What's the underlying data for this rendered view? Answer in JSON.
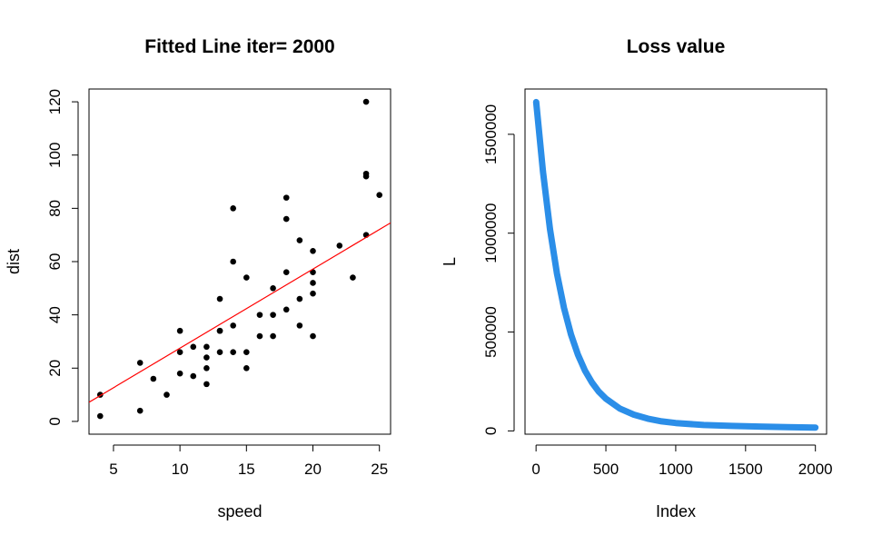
{
  "chart_data": [
    {
      "type": "scatter",
      "title": "Fitted Line iter= 2000",
      "xlabel": "speed",
      "ylabel": "dist",
      "xlim": [
        3.16,
        25.84
      ],
      "ylim": [
        -4.8,
        124.8
      ],
      "xticks": [
        5,
        10,
        15,
        20,
        25
      ],
      "yticks": [
        0,
        20,
        40,
        60,
        80,
        100,
        120
      ],
      "grid": false,
      "points": [
        {
          "x": 4,
          "y": 2
        },
        {
          "x": 4,
          "y": 10
        },
        {
          "x": 7,
          "y": 4
        },
        {
          "x": 7,
          "y": 22
        },
        {
          "x": 8,
          "y": 16
        },
        {
          "x": 9,
          "y": 10
        },
        {
          "x": 10,
          "y": 18
        },
        {
          "x": 10,
          "y": 26
        },
        {
          "x": 10,
          "y": 34
        },
        {
          "x": 11,
          "y": 17
        },
        {
          "x": 11,
          "y": 28
        },
        {
          "x": 12,
          "y": 14
        },
        {
          "x": 12,
          "y": 20
        },
        {
          "x": 12,
          "y": 24
        },
        {
          "x": 12,
          "y": 28
        },
        {
          "x": 13,
          "y": 26
        },
        {
          "x": 13,
          "y": 34
        },
        {
          "x": 13,
          "y": 34
        },
        {
          "x": 13,
          "y": 46
        },
        {
          "x": 14,
          "y": 26
        },
        {
          "x": 14,
          "y": 36
        },
        {
          "x": 14,
          "y": 60
        },
        {
          "x": 14,
          "y": 80
        },
        {
          "x": 15,
          "y": 20
        },
        {
          "x": 15,
          "y": 26
        },
        {
          "x": 15,
          "y": 54
        },
        {
          "x": 16,
          "y": 32
        },
        {
          "x": 16,
          "y": 40
        },
        {
          "x": 17,
          "y": 32
        },
        {
          "x": 17,
          "y": 40
        },
        {
          "x": 17,
          "y": 50
        },
        {
          "x": 18,
          "y": 42
        },
        {
          "x": 18,
          "y": 56
        },
        {
          "x": 18,
          "y": 76
        },
        {
          "x": 18,
          "y": 84
        },
        {
          "x": 19,
          "y": 36
        },
        {
          "x": 19,
          "y": 46
        },
        {
          "x": 19,
          "y": 68
        },
        {
          "x": 20,
          "y": 32
        },
        {
          "x": 20,
          "y": 48
        },
        {
          "x": 20,
          "y": 52
        },
        {
          "x": 20,
          "y": 56
        },
        {
          "x": 20,
          "y": 64
        },
        {
          "x": 22,
          "y": 66
        },
        {
          "x": 23,
          "y": 54
        },
        {
          "x": 24,
          "y": 70
        },
        {
          "x": 24,
          "y": 92
        },
        {
          "x": 24,
          "y": 93
        },
        {
          "x": 24,
          "y": 120
        },
        {
          "x": 25,
          "y": 85
        }
      ],
      "fitted_line": {
        "intercept": -2.2,
        "slope": 2.97
      },
      "point_color": "#000000",
      "line_color": "#ff0000"
    },
    {
      "type": "line",
      "title": "Loss value",
      "xlabel": "Index",
      "ylabel": "L",
      "xlim": [
        -79,
        2080
      ],
      "ylim": [
        -16600,
        1729000
      ],
      "xticks": [
        0,
        500,
        1000,
        1500,
        2000
      ],
      "yticks": [
        0,
        500000,
        1000000,
        1500000
      ],
      "grid": false,
      "series": [
        {
          "x": [
            1,
            50,
            100,
            150,
            200,
            250,
            300,
            350,
            400,
            450,
            500,
            600,
            700,
            800,
            900,
            1000,
            1200,
            1400,
            1600,
            1800,
            2000
          ],
          "values": [
            1663000,
            1310000,
            1020000,
            795000,
            622000,
            488000,
            385000,
            305000,
            245000,
            198000,
            163000,
            113000,
            82000,
            62000,
            48000,
            40000,
            30000,
            25000,
            22000,
            19000,
            17000
          ]
        }
      ],
      "line_color": "#2b8ee8"
    }
  ]
}
